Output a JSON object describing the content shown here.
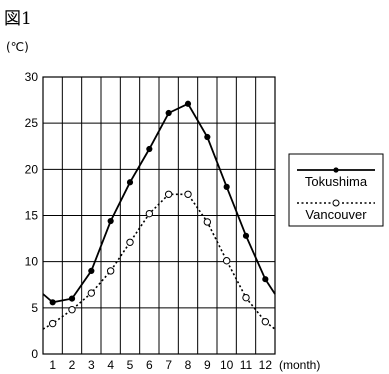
{
  "figure_label": "図1",
  "chart_data": {
    "type": "line",
    "unit_label": "(℃)",
    "xlabel": "(month)",
    "categories": [
      "1",
      "2",
      "3",
      "4",
      "5",
      "6",
      "7",
      "8",
      "9",
      "10",
      "11",
      "12"
    ],
    "xlim": [
      0.5,
      12.5
    ],
    "ylim": [
      0,
      30
    ],
    "yticks": [
      0,
      5,
      10,
      15,
      20,
      25,
      30
    ],
    "grid": true,
    "legend_placement": "right",
    "series": [
      {
        "name": "Tokushima",
        "style": "solid",
        "marker": "filled-circle",
        "color": "#000000",
        "edge_values": [
          6.5,
          6.5
        ],
        "values": [
          5.6,
          6.0,
          9.0,
          14.4,
          18.6,
          22.2,
          26.1,
          27.1,
          23.5,
          18.1,
          12.8,
          8.1
        ]
      },
      {
        "name": "Vancouver",
        "style": "dotted",
        "marker": "open-circle",
        "color": "#000000",
        "edge_values": [
          2.7,
          2.7
        ],
        "values": [
          3.3,
          4.8,
          6.6,
          9.0,
          12.1,
          15.2,
          17.3,
          17.3,
          14.3,
          10.1,
          6.1,
          3.5
        ]
      }
    ]
  }
}
